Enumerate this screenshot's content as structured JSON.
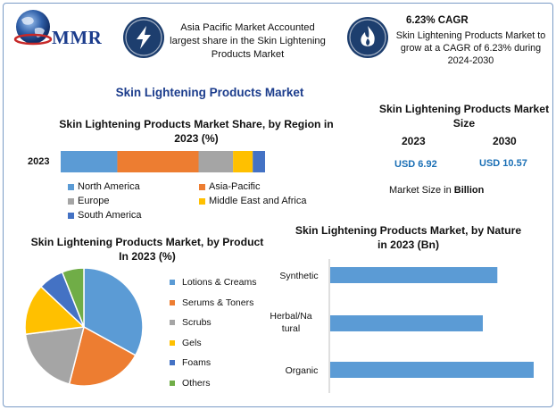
{
  "header": {
    "logo_text": "MMR",
    "headline_1": "Asia Pacific Market Accounted largest share in the Skin Lightening Products Market",
    "cagr_title": "6.23% CAGR",
    "cagr_text": "Skin Lightening Products Market to grow at a CAGR of 6.23% during 2024-2030"
  },
  "main_title": "Skin Lightening Products Market",
  "market_size": {
    "title": "Skin Lightening Products Market Size",
    "year_1": "2023",
    "year_2": "2030",
    "value_1": "USD 6.92",
    "value_2": "USD 10.57",
    "note_prefix": "Market Size in ",
    "note_bold": "Billion"
  },
  "colors": {
    "blue": "#5b9bd5",
    "orange": "#ed7d31",
    "gray": "#a5a5a5",
    "yellow": "#ffc000",
    "darkblue": "#4472c4",
    "green": "#70ad47",
    "badge": "#1d3e6e",
    "title_blue": "#1b3c8c",
    "usd_blue": "#1a6fb5"
  },
  "chart_data": [
    {
      "type": "bar",
      "orientation": "horizontal-stacked",
      "title": "Skin Lightening Products Market Share, by Region in 2023 (%)",
      "categories": [
        "2023"
      ],
      "series": [
        {
          "name": "North America",
          "values": [
            23
          ],
          "color": "#5b9bd5"
        },
        {
          "name": "Asia-Pacific",
          "values": [
            33
          ],
          "color": "#ed7d31"
        },
        {
          "name": "Europe",
          "values": [
            14
          ],
          "color": "#a5a5a5"
        },
        {
          "name": "Middle East and Africa",
          "values": [
            8
          ],
          "color": "#ffc000"
        },
        {
          "name": "South America",
          "values": [
            5
          ],
          "color": "#4472c4"
        }
      ],
      "legend": "bottom"
    },
    {
      "type": "pie",
      "title": "Skin Lightening Products Market, by Product In 2023 (%)",
      "categories": [
        "Lotions & Creams",
        "Serums & Toners",
        "Scrubs",
        "Gels",
        "Foams",
        "Others"
      ],
      "values": [
        33,
        21,
        19,
        14,
        7,
        6
      ],
      "colors": [
        "#5b9bd5",
        "#ed7d31",
        "#a5a5a5",
        "#ffc000",
        "#4472c4",
        "#70ad47"
      ],
      "legend": "right"
    },
    {
      "type": "bar",
      "orientation": "horizontal",
      "title": "Skin Lightening Products Market, by Nature in 2023 (Bn)",
      "categories": [
        "Synthetic",
        "Herbal/Natural",
        "Organic"
      ],
      "category_display": [
        "Synthetic",
        "Herbal/Na|tural",
        "Organic"
      ],
      "values": [
        2.3,
        2.1,
        2.8
      ],
      "color": "#5b9bd5",
      "xlim": [
        0,
        3.5
      ],
      "grid": false
    }
  ]
}
